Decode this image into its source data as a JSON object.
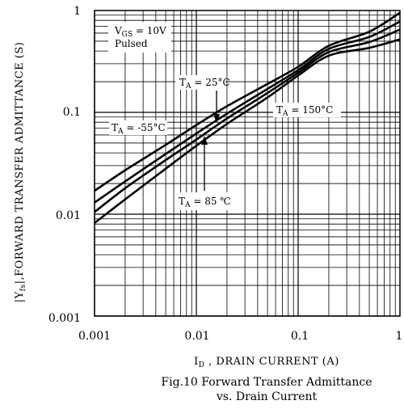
{
  "chart_data": {
    "type": "line",
    "x_scale": "log",
    "y_scale": "log",
    "xlim": [
      0.001,
      1
    ],
    "ylim": [
      0.001,
      1
    ],
    "grid": true,
    "x_ticks": [
      "0.001",
      "0.01",
      "0.1",
      "1"
    ],
    "y_ticks": [
      "1",
      "0.1",
      "0.01",
      "0.001"
    ],
    "xlabel": {
      "main": "I",
      "sub": "D",
      "rest": " , DRAIN CURRENT (A)"
    },
    "ylabel": {
      "pre": "|Y",
      "sub": "fs",
      "rest": "|,FORWARD TRANSFER ADMITTANCE (S)"
    },
    "caption_line1": "Fig.10 Forward Transfer Admittance",
    "caption_line2": "vs. Drain Current",
    "conditions": {
      "line1_main": "V",
      "line1_sub": "GS",
      "line1_rest": " = 10V",
      "line2": "Pulsed"
    },
    "series": [
      {
        "name": "TA = -55°C",
        "label": {
          "main": "T",
          "sub": "A",
          "rest": " = -55°C"
        },
        "x": [
          0.001,
          0.002,
          0.005,
          0.01,
          0.02,
          0.05,
          0.1,
          0.2,
          0.5,
          1.0
        ],
        "y": [
          0.017,
          0.027,
          0.048,
          0.075,
          0.115,
          0.19,
          0.28,
          0.45,
          0.62,
          0.95
        ]
      },
      {
        "name": "TA = 25°C",
        "label": {
          "main": "T",
          "sub": "A",
          "rest": " = 25°C"
        },
        "x": [
          0.001,
          0.002,
          0.005,
          0.01,
          0.02,
          0.05,
          0.1,
          0.2,
          0.5,
          1.0
        ],
        "y": [
          0.013,
          0.021,
          0.039,
          0.062,
          0.097,
          0.17,
          0.26,
          0.42,
          0.55,
          0.78
        ]
      },
      {
        "name": "TA = 85°C",
        "label": {
          "main": "T",
          "sub": "A",
          "rest": " = 85 ℃"
        },
        "x": [
          0.001,
          0.002,
          0.005,
          0.01,
          0.02,
          0.05,
          0.1,
          0.2,
          0.5,
          1.0
        ],
        "y": [
          0.0105,
          0.018,
          0.034,
          0.054,
          0.087,
          0.155,
          0.245,
          0.39,
          0.49,
          0.65
        ]
      },
      {
        "name": "TA = 150°C",
        "label": {
          "main": "T",
          "sub": "A",
          "rest": " = 150°C"
        },
        "x": [
          0.001,
          0.002,
          0.005,
          0.01,
          0.02,
          0.05,
          0.1,
          0.2,
          0.5,
          1.0
        ],
        "y": [
          0.0082,
          0.014,
          0.028,
          0.047,
          0.077,
          0.14,
          0.23,
          0.36,
          0.43,
          0.52
        ]
      }
    ]
  }
}
